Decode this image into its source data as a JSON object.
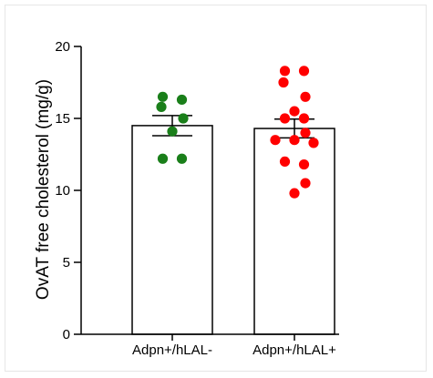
{
  "chart_data": {
    "type": "bar",
    "title": "",
    "xlabel": "",
    "ylabel": "OvAT free cholesterol (mg/g)",
    "ylim": [
      0,
      20
    ],
    "yticks": [
      0,
      5,
      10,
      15,
      20
    ],
    "categories": [
      "Adpn+/hLAL-",
      "Adpn+/hLAL+"
    ],
    "values": [
      14.5,
      14.3
    ],
    "errors": [
      0.7,
      0.65
    ],
    "bar_fill": "#ffffff",
    "bar_edge": "#000000",
    "point_colors": [
      "#1a7f1a",
      "#ff0000"
    ],
    "points": [
      [
        16.5,
        16.3,
        15.8,
        15.0,
        14.1,
        12.2,
        12.2
      ],
      [
        18.3,
        18.3,
        17.5,
        16.5,
        15.5,
        15.0,
        15.0,
        14.0,
        13.5,
        13.5,
        13.3,
        12.0,
        11.8,
        10.5,
        9.8
      ]
    ],
    "grid": false,
    "legend": "none"
  }
}
